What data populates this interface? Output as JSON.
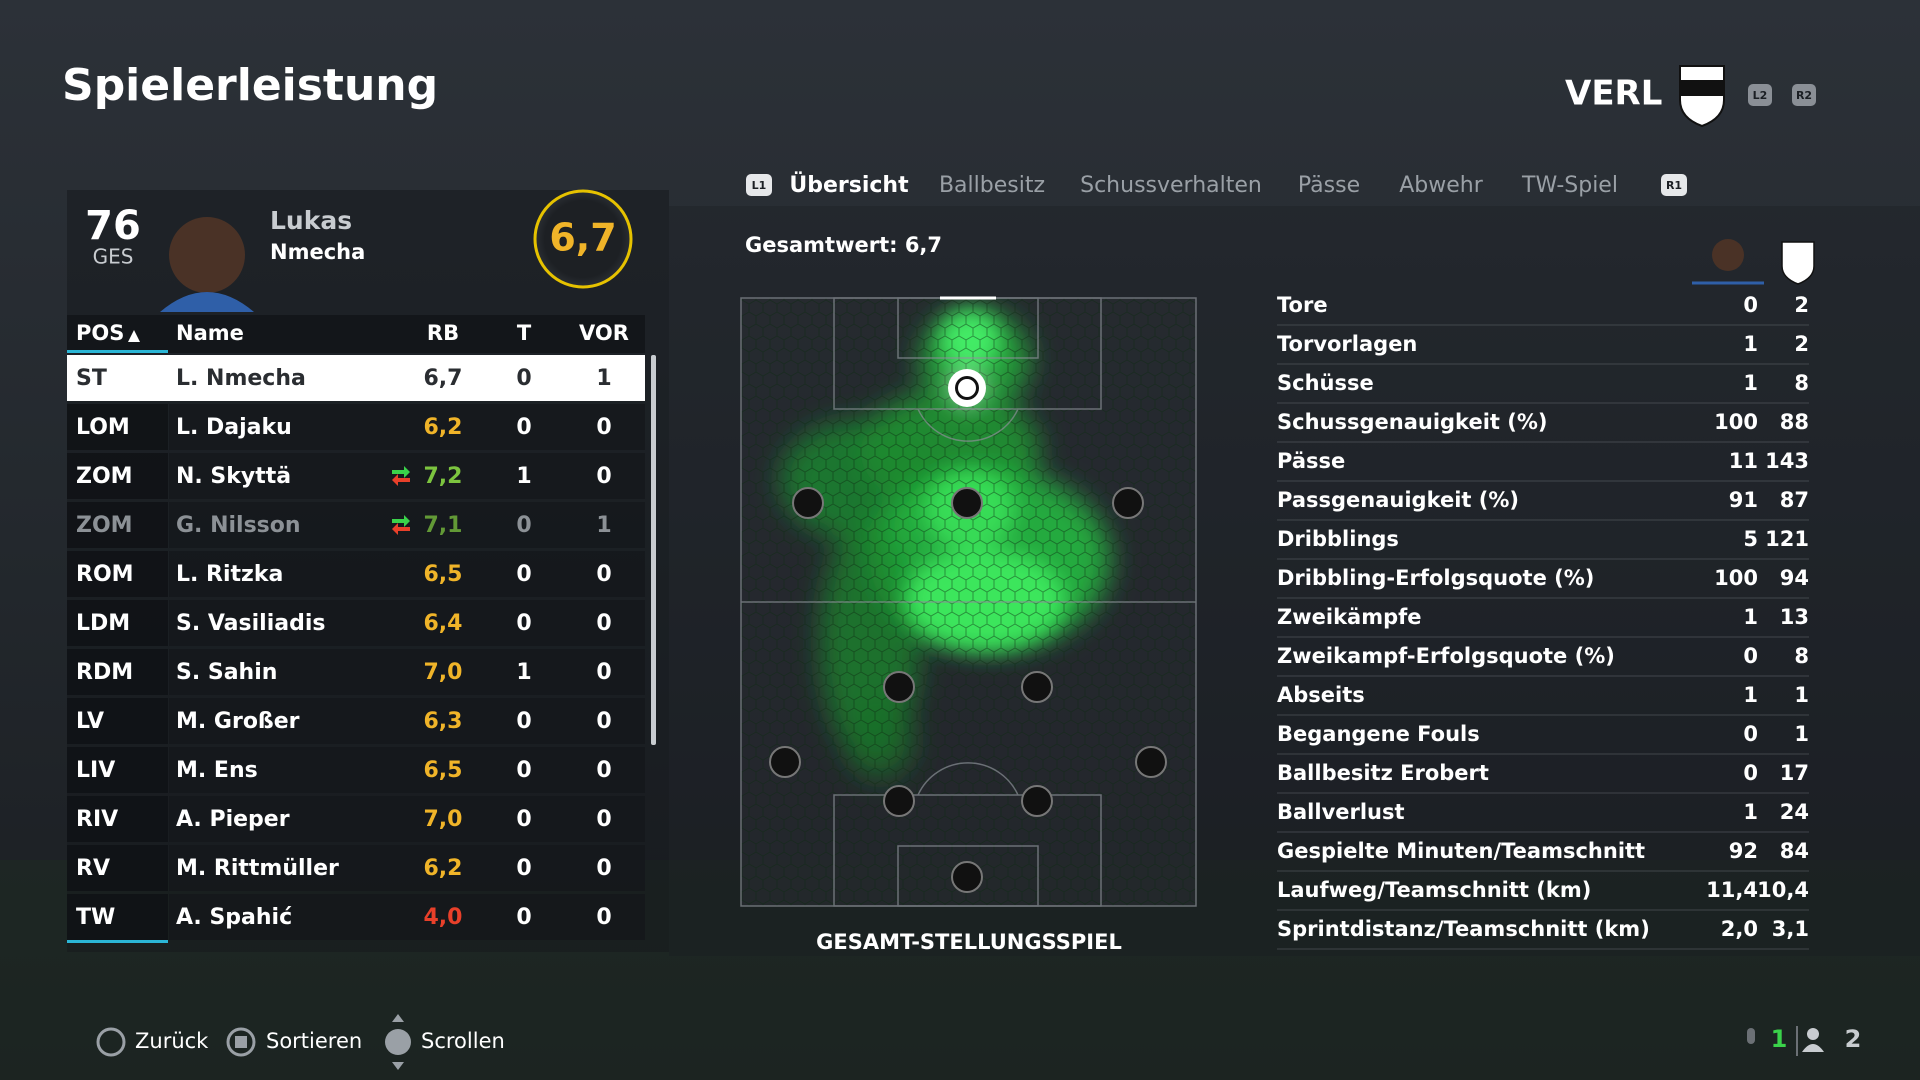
{
  "header": {
    "title": "Spielerleistung",
    "team": "VERL",
    "buttons": [
      "L2",
      "R2"
    ]
  },
  "player": {
    "overall": "76",
    "overall_label": "GES",
    "first_name": "Lukas",
    "last_name": "Nmecha",
    "match_rating": "6,7"
  },
  "table": {
    "columns": [
      "POS",
      "Name",
      "RB",
      "T",
      "VOR"
    ],
    "rows": [
      {
        "cells": [
          "ST",
          "L. Nmecha",
          "6,7",
          "0",
          "1"
        ],
        "rb_color": "#2a2d31",
        "selected": true
      },
      {
        "cells": [
          "LOM",
          "L. Dajaku",
          "6,2",
          "0",
          "0"
        ],
        "rb_color": "#f0b429"
      },
      {
        "cells": [
          "ZOM",
          "N. Skyttä",
          "7,2",
          "1",
          "0"
        ],
        "rb_color": "#7cc43f",
        "swap_icon": true
      },
      {
        "cells": [
          "ZOM",
          "G. Nilsson",
          "7,1",
          "0",
          "1"
        ],
        "rb_color": "#7cc43f",
        "swap_icon": true,
        "dimmed": true
      },
      {
        "cells": [
          "ROM",
          "L. Ritzka",
          "6,5",
          "0",
          "0"
        ],
        "rb_color": "#f0b429"
      },
      {
        "cells": [
          "LDM",
          "S. Vasiliadis",
          "6,4",
          "0",
          "0"
        ],
        "rb_color": "#f0b429"
      },
      {
        "cells": [
          "RDM",
          "S. Sahin",
          "7,0",
          "1",
          "0"
        ],
        "rb_color": "#f0b429"
      },
      {
        "cells": [
          "LV",
          "M. Großer",
          "6,3",
          "0",
          "0"
        ],
        "rb_color": "#f0b429"
      },
      {
        "cells": [
          "LIV",
          "M. Ens",
          "6,5",
          "0",
          "0"
        ],
        "rb_color": "#f0b429"
      },
      {
        "cells": [
          "RIV",
          "A. Pieper",
          "7,0",
          "0",
          "0"
        ],
        "rb_color": "#f0b429"
      },
      {
        "cells": [
          "RV",
          "M. Rittmüller",
          "6,2",
          "0",
          "0"
        ],
        "rb_color": "#f0b429"
      },
      {
        "cells": [
          "TW",
          "A. Spahić",
          "4,0",
          "0",
          "0"
        ],
        "rb_color": "#e8402a"
      }
    ]
  },
  "tabs": {
    "left_button": "L1",
    "right_button": "R1",
    "active": 0,
    "items": [
      "Übersicht",
      "Ballbesitz",
      "Schussverhalten",
      "Pässe",
      "Abwehr",
      "TW-Spiel"
    ]
  },
  "overview": {
    "summary": "Gesamtwert: 6,7",
    "heatmap_caption": "GESAMT-STELLUNGSSPIEL",
    "stats": [
      [
        "Tore",
        "0",
        "2"
      ],
      [
        "Torvorlagen",
        "1",
        "2"
      ],
      [
        "Schüsse",
        "1",
        "8"
      ],
      [
        "Schussgenauigkeit (%)",
        "100",
        "88"
      ],
      [
        "Pässe",
        "11",
        "143"
      ],
      [
        "Passgenauigkeit (%)",
        "91",
        "87"
      ],
      [
        "Dribblings",
        "5",
        "121"
      ],
      [
        "Dribbling-Erfolgsquote (%)",
        "100",
        "94"
      ],
      [
        "Zweikämpfe",
        "1",
        "13"
      ],
      [
        "Zweikampf-Erfolgsquote (%)",
        "0",
        "8"
      ],
      [
        "Abseits",
        "1",
        "1"
      ],
      [
        "Begangene Fouls",
        "0",
        "1"
      ],
      [
        "Ballbesitz Erobert",
        "0",
        "17"
      ],
      [
        "Ballverlust",
        "1",
        "24"
      ],
      [
        "Gespielte Minuten/Teamschnitt",
        "92",
        "84"
      ],
      [
        "Laufweg/Teamschnitt (km)",
        "11,4",
        "10,4"
      ],
      [
        "Sprintdistanz/Teamschnitt (km)",
        "2,0",
        "3,1"
      ]
    ]
  },
  "footer": {
    "controls": [
      "Zurück",
      "Sortieren",
      "Scrollen"
    ],
    "mic_count": "1",
    "party_count": "2"
  }
}
